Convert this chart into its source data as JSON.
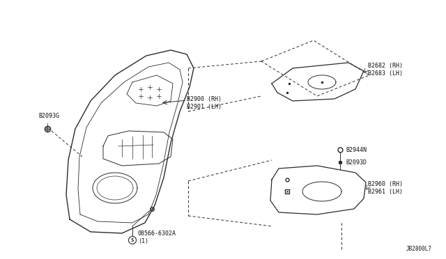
{
  "bg_color": "#ffffff",
  "text_color": "#111111",
  "diagram_code": "JB2800L7",
  "labels": {
    "B2093G": "B2093G",
    "B2900": "B2900 (RH)\nB2901 (LH)",
    "B08566": "08566-6302A\n(1)",
    "B2682": "B2682 (RH)\nB2683 (LH)",
    "B2944N": "B2944N",
    "B2093D": "B2093D",
    "B2960": "B2960 (RH)\nB2961 (LH)"
  },
  "font_size": 6.0,
  "line_color": "#2a2a2a",
  "dash_pattern": [
    4,
    3
  ]
}
